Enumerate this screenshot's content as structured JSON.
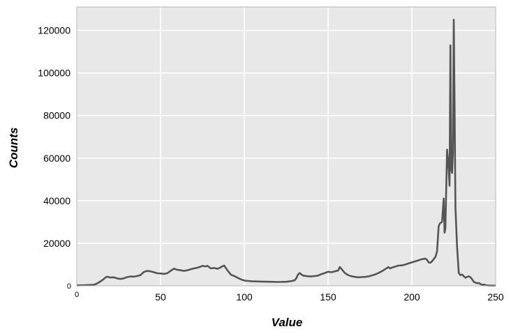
{
  "chart_data": {
    "type": "line",
    "title": "",
    "xlabel": "Value",
    "ylabel": "Counts",
    "xlim": [
      0,
      250
    ],
    "ylim": [
      0,
      131000
    ],
    "xticks": [
      0,
      50,
      100,
      150,
      200,
      250
    ],
    "yticks": [
      0,
      20000,
      40000,
      60000,
      80000,
      100000,
      120000
    ],
    "grid": true,
    "colors": {
      "line": "#555555",
      "background": "#e8e8e8",
      "grid": "#ffffff",
      "frame": "#b0b0b0"
    },
    "series": [
      {
        "x": [
          0,
          5,
          10,
          12,
          15,
          17,
          18,
          20,
          22,
          24,
          26,
          28,
          30,
          32,
          34,
          36,
          38,
          40,
          42,
          44,
          46,
          48,
          50,
          52,
          54,
          56,
          58,
          60,
          62,
          64,
          66,
          68,
          70,
          72,
          74,
          75,
          76,
          77,
          78,
          80,
          82,
          84,
          86,
          87,
          88,
          90,
          92,
          94,
          95,
          96,
          98,
          100,
          102,
          105,
          110,
          115,
          120,
          125,
          128,
          130,
          131,
          132,
          133,
          135,
          138,
          140,
          142,
          144,
          146,
          148,
          150,
          152,
          154,
          156,
          157,
          158,
          160,
          162,
          164,
          166,
          168,
          170,
          172,
          174,
          176,
          178,
          180,
          182,
          184,
          186,
          187,
          188,
          190,
          192,
          194,
          196,
          198,
          200,
          202,
          204,
          206,
          208,
          209,
          210,
          211,
          212,
          213,
          214,
          215,
          216,
          216.5,
          217,
          218,
          219,
          219.5,
          220,
          221,
          221.5,
          222,
          222.5,
          223,
          223.5,
          224,
          224.5,
          225,
          225.5,
          226,
          227,
          228,
          229,
          230,
          231,
          232,
          233,
          234,
          235,
          236,
          237,
          238,
          239,
          240,
          241,
          242,
          243,
          244,
          245,
          246,
          248,
          250
        ],
        "y": [
          200,
          300,
          500,
          1000,
          2500,
          3800,
          4300,
          3900,
          4000,
          3500,
          3200,
          3500,
          4100,
          4400,
          4300,
          4600,
          5000,
          6500,
          7000,
          6800,
          6400,
          5900,
          5800,
          5600,
          5900,
          7000,
          8100,
          7500,
          7300,
          7000,
          7300,
          7800,
          8200,
          8500,
          9000,
          9400,
          9200,
          9100,
          9400,
          8200,
          8400,
          8000,
          8700,
          9200,
          9500,
          7200,
          5200,
          4600,
          4200,
          3800,
          3000,
          2500,
          2300,
          2100,
          2000,
          1900,
          1800,
          1900,
          2200,
          2600,
          3500,
          5200,
          6000,
          4800,
          4500,
          4400,
          4600,
          4800,
          5500,
          6000,
          6600,
          6400,
          6800,
          7200,
          8800,
          7900,
          6000,
          5000,
          4500,
          4200,
          4000,
          4100,
          4200,
          4400,
          4800,
          5300,
          6000,
          6800,
          7800,
          8800,
          8200,
          8500,
          9000,
          9500,
          9600,
          10000,
          10500,
          11000,
          11500,
          12000,
          12500,
          12800,
          12200,
          11000,
          10800,
          11500,
          12500,
          13500,
          16000,
          28000,
          29000,
          29500,
          30000,
          41000,
          25000,
          27000,
          64000,
          60000,
          54000,
          47000,
          113000,
          55000,
          53000,
          62000,
          125000,
          85000,
          37000,
          18000,
          6000,
          5000,
          5300,
          4500,
          3800,
          4200,
          4500,
          4000,
          3000,
          1800,
          1500,
          1200,
          1300,
          800,
          500,
          600,
          300,
          200,
          100,
          100,
          100
        ]
      }
    ]
  }
}
